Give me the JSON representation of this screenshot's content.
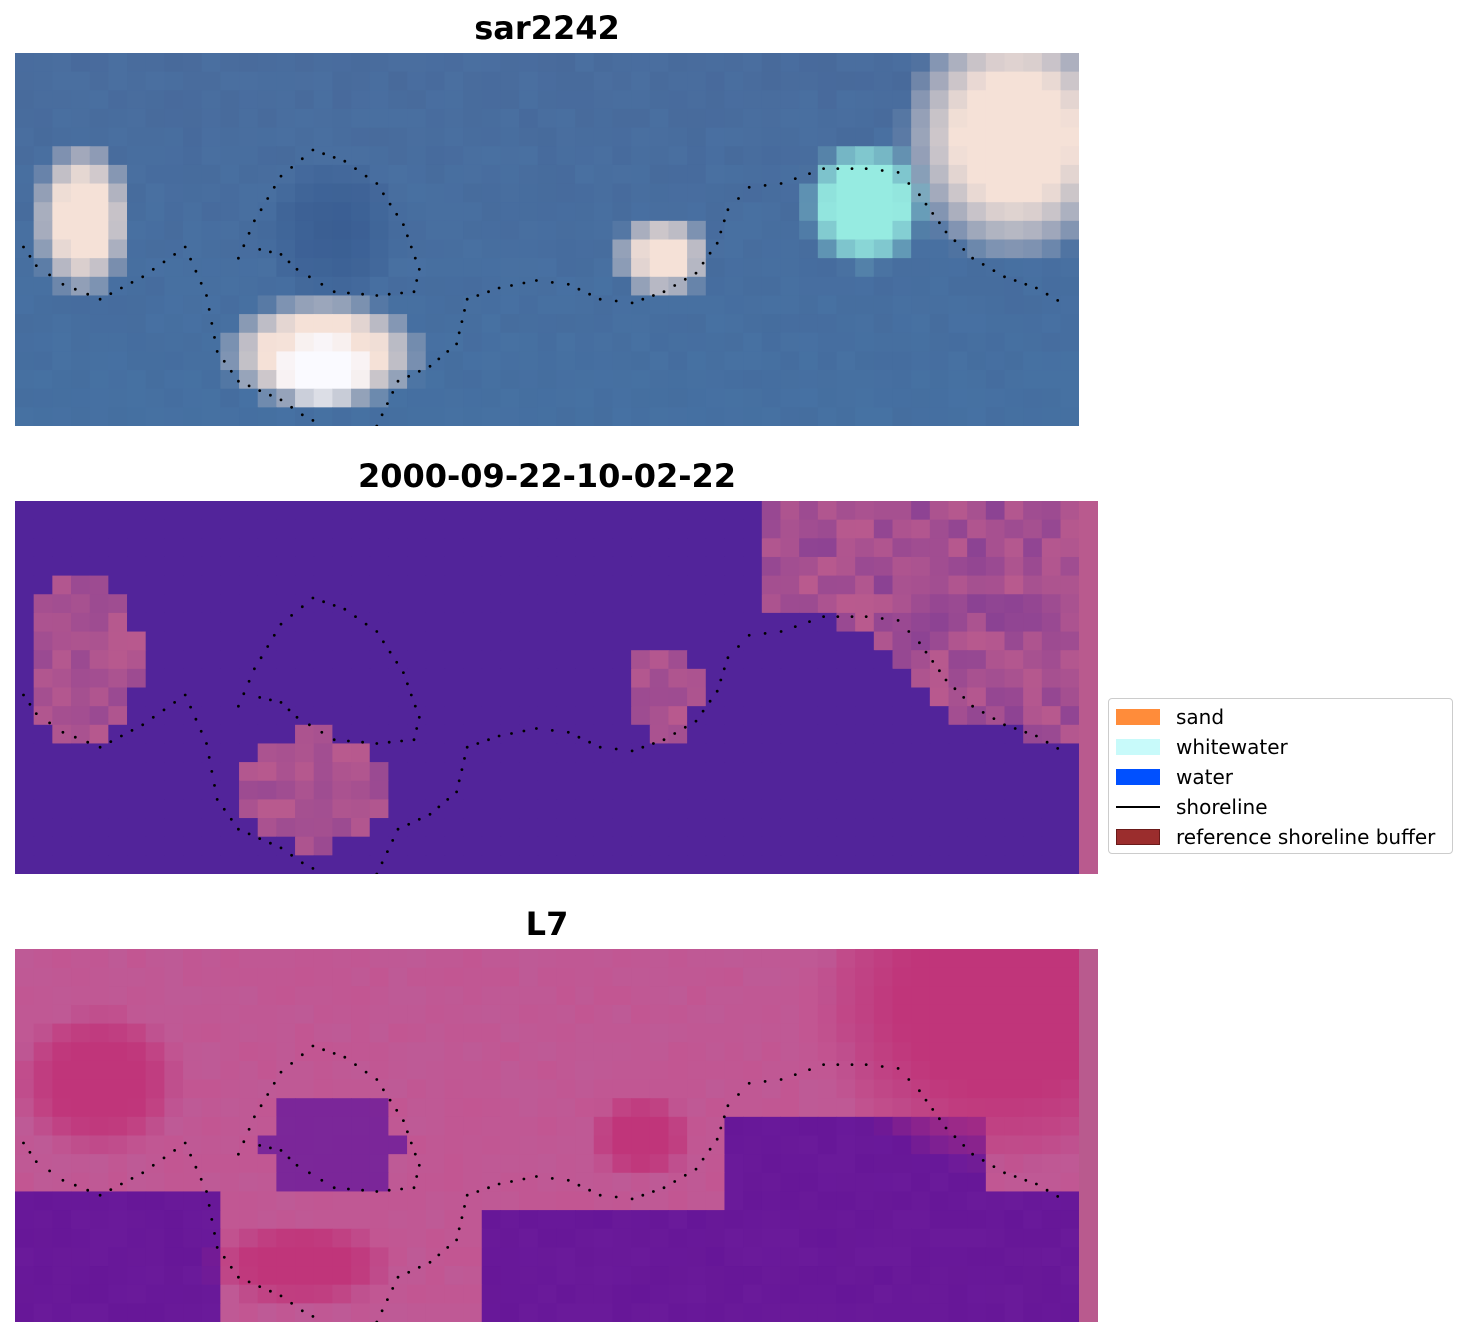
{
  "panels": [
    {
      "title": "sar2242",
      "kind": "rgb"
    },
    {
      "title": "2000-09-22-10-02-22",
      "kind": "classification"
    },
    {
      "title": "L7",
      "kind": "probability"
    }
  ],
  "legend": {
    "items": [
      {
        "label": "sand",
        "color": "#ff8c3a",
        "type": "patch"
      },
      {
        "label": "whitewater",
        "color": "#c8fafa",
        "type": "patch"
      },
      {
        "label": "water",
        "color": "#0050ff",
        "type": "patch"
      },
      {
        "label": "shoreline",
        "color": "#000000",
        "type": "line"
      },
      {
        "label": "reference shoreline buffer",
        "color": "#9b2d2d",
        "type": "patch"
      }
    ]
  },
  "colors": {
    "rgb_water": "#4a6fa0",
    "class_water": "#52249a",
    "class_land": "#b95a8e",
    "prob_land": "#c0357a",
    "prob_sea": "#6a1a9a",
    "shoreline": "#000000"
  }
}
